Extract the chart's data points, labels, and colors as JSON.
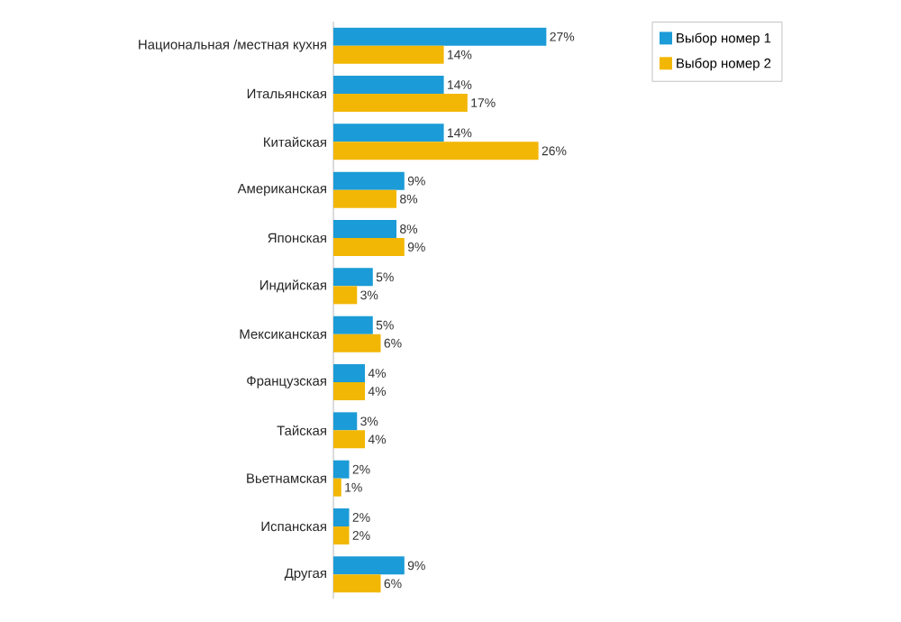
{
  "chart_data": {
    "type": "bar",
    "orientation": "horizontal",
    "legend": "top right",
    "tick_labels": "y",
    "categories": [
      "Национальная /местная кухня",
      "Итальянская",
      "Китайская",
      "Американская",
      "Японская",
      "Индийская",
      "Мексиканская",
      "Французская",
      "Тайская",
      "Вьетнамская",
      "Испанская",
      "Другая"
    ],
    "series": [
      {
        "name": "Выбор номер 1",
        "color": "#1b9bd7",
        "values": [
          27,
          14,
          14,
          9,
          8,
          5,
          5,
          4,
          3,
          2,
          2,
          9
        ],
        "value_labels": [
          "27%",
          "14%",
          "14%",
          "9%",
          "8%",
          "5%",
          "5%",
          "4%",
          "3%",
          "2%",
          "2%",
          "9%"
        ]
      },
      {
        "name": "Выбор номер 2",
        "color": "#f2b705",
        "values": [
          14,
          17,
          26,
          8,
          9,
          3,
          6,
          4,
          4,
          1,
          2,
          6
        ],
        "value_labels": [
          "14%",
          "17%",
          "26%",
          "8%",
          "9%",
          "3%",
          "6%",
          "4%",
          "4%",
          "1%",
          "2%",
          "6%"
        ]
      }
    ]
  }
}
